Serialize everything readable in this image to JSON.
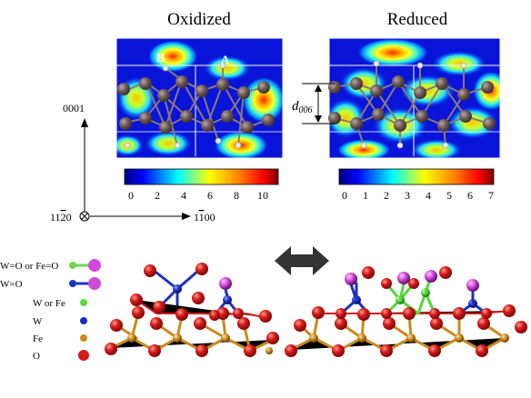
{
  "panels": {
    "left_title": "Oxidized",
    "right_title": "Reduced",
    "site_b": "B",
    "site_a": "A",
    "spacing_label": "d",
    "spacing_sub": "006"
  },
  "colorbars": {
    "left_ticks": [
      "0",
      "2",
      "4",
      "6",
      "8",
      "10"
    ],
    "right_ticks": [
      "0",
      "1",
      "2",
      "3",
      "4",
      "5",
      "6",
      "7"
    ]
  },
  "axes": {
    "vertical": "0001",
    "origin_pre": "11",
    "origin_bar": "2",
    "origin_post": "0",
    "horizontal_pre": "1",
    "horizontal_bar": "1",
    "horizontal_post": "00"
  },
  "legend": [
    {
      "label": "W=O or Fe=O",
      "kind": "bond",
      "color": "#6ad64a",
      "tip": "#d04ad8"
    },
    {
      "label": "W=O",
      "kind": "bond",
      "color": "#1a35c8",
      "tip": "#d04ad8"
    },
    {
      "label": "W or Fe",
      "kind": "atom",
      "color": "#5ad83a"
    },
    {
      "label": "W",
      "kind": "atom",
      "color": "#1a2fc0"
    },
    {
      "label": "Fe",
      "kind": "atom",
      "color": "#d08a1a"
    },
    {
      "label": "O",
      "kind": "atom",
      "color": "#d61a1a"
    }
  ],
  "colors": {
    "oxygen": "#d61a1a",
    "iron": "#c98a1e",
    "tungsten": "#1a30c0",
    "mixed": "#55d63a",
    "terminal_o": "#cc44d6",
    "lattice_atom": "#6e5a58",
    "arrow": "#333333"
  }
}
